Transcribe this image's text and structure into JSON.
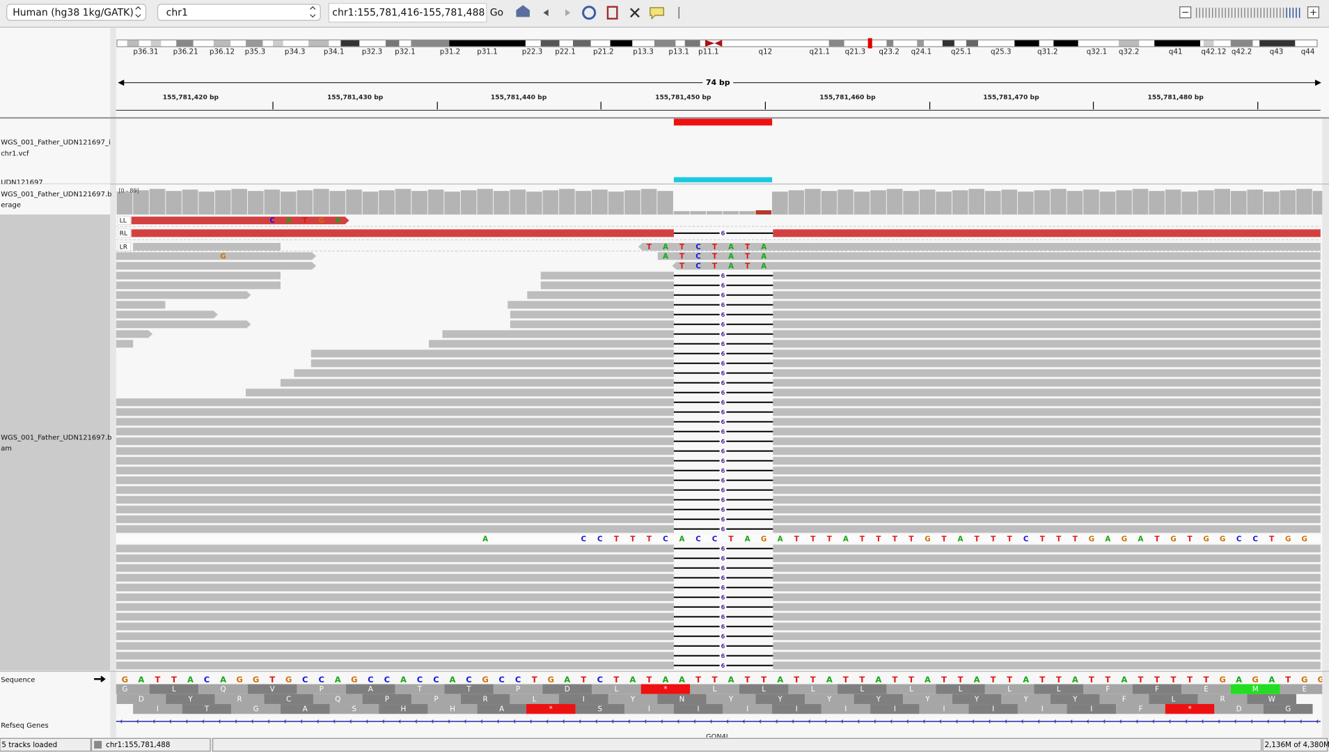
{
  "toolbar": {
    "genome": "Human (hg38 1kg/GATK)",
    "chromosome": "chr1",
    "locus": "chr1:155,781,416-155,781,488",
    "go": "Go"
  },
  "ideogram": {
    "bands": [
      "p36.31",
      "p36.21",
      "p36.12",
      "p35.3",
      "p34.3",
      "p34.1",
      "p32.3",
      "p32.1",
      "p31.2",
      "p31.1",
      "p22.3",
      "p22.1",
      "p21.2",
      "p13.3",
      "p13.1",
      "p11.1",
      "q12",
      "q21.1",
      "q21.3",
      "q23.2",
      "q24.1",
      "q25.1",
      "q25.3",
      "q31.2",
      "q32.1",
      "q32.2",
      "q41",
      "q42.12",
      "q42.2",
      "q43",
      "q44"
    ]
  },
  "ruler": {
    "span": "74 bp",
    "ticks": [
      "155,781,420 bp",
      "155,781,430 bp",
      "155,781,440 bp",
      "155,781,450 bp",
      "155,781,460 bp",
      "155,781,470 bp",
      "155,781,480 bp"
    ]
  },
  "tracks": {
    "vcf": {
      "name": [
        "WGS_001_Father_UDN121697_i",
        "chr1.vcf"
      ],
      "sample": "UDN121697"
    },
    "coverage": {
      "name": [
        "WGS_001_Father_UDN121697.b",
        "erage"
      ],
      "range": "[0 - 89]"
    },
    "alignments": {
      "name": [
        "WGS_001_Father_UDN121697.b",
        "am"
      ],
      "group_labels": [
        "LL",
        "RL",
        "LR"
      ],
      "deletion_label": "6",
      "soft_clips": [
        "         CATGA",
        "                                TATCTATA",
        "      G                          ATCTATA",
        "                                  TCTATA",
        "                      A     CCTTTCACCTAGATTTATTTTGTATTTCTTTGAGATGTGGCCTGG"
      ]
    },
    "sequence": {
      "name": "Sequence",
      "bases": "GATTACAGGTGCCAGCCACCACGCCTGATCTATAATTATTATTATTATTATTATTATTATTATTTTTGAGATGG",
      "frames": [
        "GLQVPATTPDL*LLLLLLLLFFEME",
        "DYRCQPPRLIYNYYYYYYYYFLRW",
        "ITGASHHA*SIIIIIIIIIIF*DG"
      ]
    },
    "genes": {
      "name": "Refseq Genes",
      "gene": "GON4L"
    }
  },
  "status": {
    "tracks": "5 tracks loaded",
    "position": "chr1:155,781,488",
    "memory": "2,136M of 4,380M"
  }
}
